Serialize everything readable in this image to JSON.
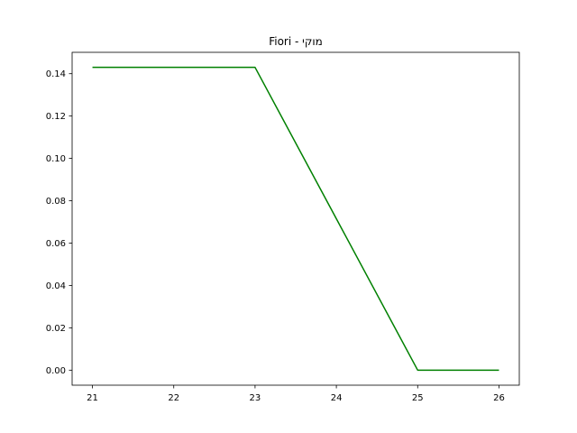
{
  "chart_data": {
    "type": "line",
    "title": "Fiori - מוקי",
    "xlabel": "",
    "ylabel": "",
    "x": [
      21,
      22,
      23,
      24,
      25,
      26
    ],
    "series": [
      {
        "values": [
          0.143,
          0.143,
          0.143,
          0.0715,
          0.0,
          0.0
        ],
        "color": "#008000"
      }
    ],
    "xlim": [
      20.75,
      26.25
    ],
    "ylim": [
      -0.0071,
      0.1501
    ],
    "xticks": [
      21,
      22,
      23,
      24,
      25,
      26
    ],
    "xtick_labels": [
      "21",
      "22",
      "23",
      "24",
      "25",
      "26"
    ],
    "yticks": [
      0.0,
      0.02,
      0.04,
      0.06,
      0.08,
      0.1,
      0.12,
      0.14
    ],
    "ytick_labels": [
      "0.00",
      "0.02",
      "0.04",
      "0.06",
      "0.08",
      "0.10",
      "0.12",
      "0.14"
    ],
    "grid": false,
    "legend": false
  }
}
